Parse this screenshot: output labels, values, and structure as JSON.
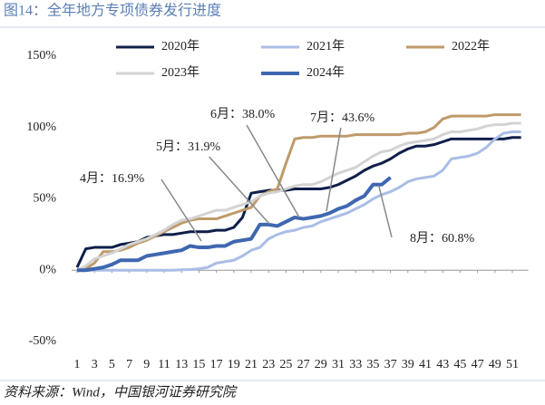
{
  "chart_data": {
    "type": "line",
    "title": "图14：全年地方专项债券发行进度",
    "source": "资料来源：Wind，中国银河证券研究院",
    "x": [
      1,
      2,
      3,
      4,
      5,
      6,
      7,
      8,
      9,
      10,
      11,
      12,
      13,
      14,
      15,
      16,
      17,
      18,
      19,
      20,
      21,
      22,
      23,
      24,
      25,
      26,
      27,
      28,
      29,
      30,
      31,
      32,
      33,
      34,
      35,
      36,
      37,
      38,
      39,
      40,
      41,
      42,
      43,
      44,
      45,
      46,
      47,
      48,
      49,
      50,
      51,
      52
    ],
    "xlim": [
      1,
      52
    ],
    "xticks": [
      1,
      3,
      5,
      7,
      9,
      11,
      13,
      15,
      17,
      19,
      21,
      23,
      25,
      27,
      29,
      31,
      33,
      35,
      37,
      39,
      41,
      43,
      45,
      47,
      49,
      51
    ],
    "ylim": [
      -50,
      150
    ],
    "yticks": [
      {
        "value": -50,
        "label": "-50%"
      },
      {
        "value": 0,
        "label": "0%"
      },
      {
        "value": 50,
        "label": "50%"
      },
      {
        "value": 100,
        "label": "100%"
      },
      {
        "value": 150,
        "label": "150%"
      }
    ],
    "legend": "top",
    "series": [
      {
        "name": "2020年",
        "color": "#0f1f4a",
        "values": [
          2,
          15,
          16,
          16,
          16,
          18,
          19,
          20,
          23,
          24,
          25,
          25,
          26,
          27,
          27,
          27,
          28,
          28,
          30,
          37,
          54,
          55,
          56,
          56,
          56,
          57,
          57,
          57,
          57,
          58,
          60,
          63,
          66,
          70,
          73,
          75,
          78,
          82,
          85,
          87,
          87,
          88,
          90,
          92,
          92,
          92,
          92,
          92,
          92,
          92,
          93,
          93
        ]
      },
      {
        "name": "2021年",
        "color": "#a9bde6",
        "values": [
          0,
          0,
          0,
          0,
          0,
          0,
          0,
          0,
          0,
          0,
          0,
          0,
          0.3,
          0.5,
          1,
          2,
          5,
          6,
          7,
          10,
          14,
          16,
          22,
          25,
          27,
          28,
          30,
          31,
          34,
          36,
          38,
          40,
          43,
          46,
          50,
          53,
          55,
          58,
          62,
          64,
          65,
          66,
          70,
          78,
          79,
          80,
          82,
          86,
          92,
          96,
          97,
          97
        ]
      },
      {
        "name": "2022年",
        "color": "#bf9a6a",
        "values": [
          0,
          1,
          5,
          13,
          13,
          14,
          16,
          19,
          21,
          24,
          27,
          30,
          33,
          35,
          36,
          36,
          36,
          38,
          40,
          42,
          44,
          52,
          55,
          57,
          75,
          92,
          93,
          93,
          94,
          94,
          94,
          94,
          95,
          95,
          95,
          95,
          95,
          95,
          96,
          96,
          97,
          100,
          106,
          108,
          108,
          108,
          108,
          108,
          109,
          109,
          109,
          109
        ]
      },
      {
        "name": "2023年",
        "color": "#d3d3d3",
        "values": [
          0,
          3,
          8,
          10,
          12,
          15,
          18,
          20,
          22,
          25,
          28,
          32,
          35,
          36,
          38,
          40,
          42,
          42,
          44,
          46,
          48,
          52,
          54,
          55,
          57,
          59,
          60,
          60,
          62,
          65,
          68,
          70,
          72,
          76,
          80,
          83,
          84,
          87,
          89,
          90,
          91,
          92,
          95,
          97,
          97,
          98,
          99,
          101,
          102,
          102,
          103,
          103
        ]
      },
      {
        "name": "2024年",
        "color": "#3f67b0",
        "values": [
          0,
          0,
          1,
          2,
          4,
          7,
          7,
          7,
          10,
          11,
          12,
          13,
          14,
          17,
          16,
          16,
          17,
          17,
          20,
          21,
          22,
          32,
          32,
          31,
          34,
          37,
          36,
          37,
          38,
          40,
          43,
          45,
          49,
          52,
          60,
          60,
          65,
          null,
          null,
          null,
          null,
          null,
          null,
          null,
          null,
          null,
          null,
          null,
          null,
          null,
          null,
          null
        ]
      }
    ],
    "annotations": [
      "4月：16.9%",
      "5月：31.9%",
      "6月：38.0%",
      "7月：43.6%",
      "8月：60.8%"
    ]
  }
}
